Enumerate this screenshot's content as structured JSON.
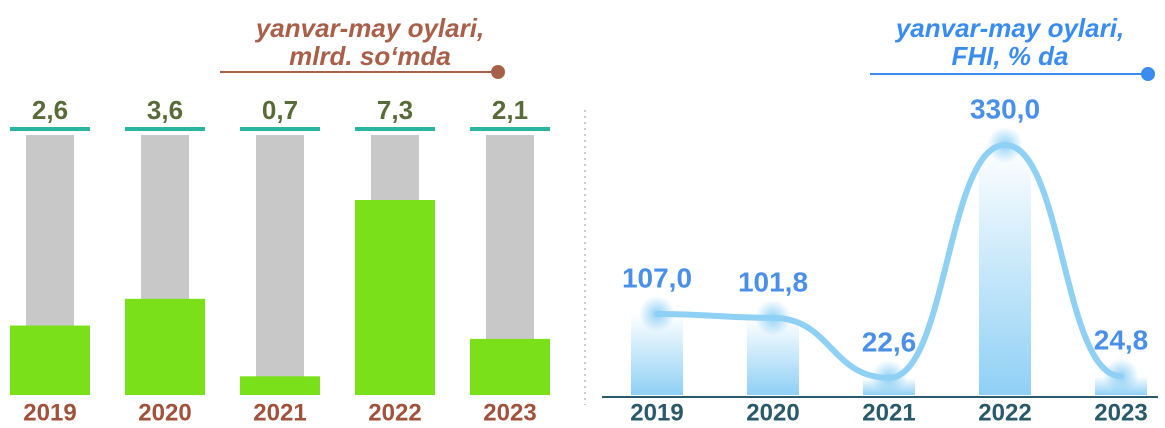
{
  "chart_data": [
    {
      "type": "bar",
      "title": [
        "yanvar-may oylari,",
        "mlrd. so‘mda"
      ],
      "title_color": "#a8604a",
      "categories": [
        "2019",
        "2020",
        "2021",
        "2022",
        "2023"
      ],
      "values": [
        2.6,
        3.6,
        0.7,
        7.3,
        2.1
      ],
      "value_labels": [
        "2,6",
        "3,6",
        "0,7",
        "7,3",
        "2,1"
      ],
      "color": "#7ae01a",
      "track_color": "#c8c8c8",
      "label_color": "#5a6b3a",
      "category_color": "#a0523d"
    },
    {
      "type": "line",
      "title": [
        "yanvar-may oylari,",
        "FHI, % da"
      ],
      "title_color": "#3a8cf0",
      "categories": [
        "2019",
        "2020",
        "2021",
        "2022",
        "2023"
      ],
      "values": [
        107.0,
        101.8,
        22.6,
        330.0,
        24.8
      ],
      "value_labels": [
        "107,0",
        "101,8",
        "22,6",
        "330,0",
        "24,8"
      ],
      "color": "#8fd0f5",
      "label_color": "#4a90e8",
      "category_color": "#2a5a6a"
    }
  ]
}
